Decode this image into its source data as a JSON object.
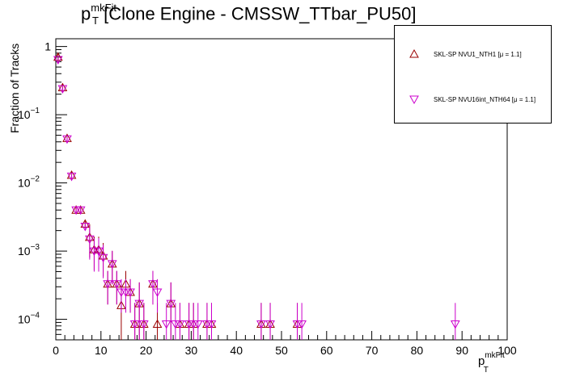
{
  "chart_data": {
    "type": "scatter",
    "title_main": "p",
    "title_sup": "mkFit",
    "title_sub": "T",
    "title_rest": " [Clone Engine - CMSSW_TTbar_PU50]",
    "ylabel": "Fraction of Tracks",
    "xlabel_main": "p",
    "xlabel_sup": "mkFit",
    "xlabel_sub": "T",
    "xlim": [
      0,
      100
    ],
    "ylim": [
      5e-05,
      1.3
    ],
    "yscale": "log",
    "xticks": [
      "0",
      "10",
      "20",
      "30",
      "40",
      "50",
      "60",
      "70",
      "80",
      "90",
      "100"
    ],
    "yticks": [
      {
        "value": 1,
        "base": "1",
        "exp": ""
      },
      {
        "value": 0.1,
        "base": "10",
        "exp": "−1"
      },
      {
        "value": 0.01,
        "base": "10",
        "exp": "−2"
      },
      {
        "value": 0.001,
        "base": "10",
        "exp": "−3"
      },
      {
        "value": 0.0001,
        "base": "10",
        "exp": "−4"
      }
    ],
    "legend_position": "top-right",
    "series": [
      {
        "name": "SKL-SP NVU1_NTH1 [μ = 1.1]",
        "marker": "triangle-up",
        "color": "#990000",
        "x": [
          0.5,
          1.5,
          2.5,
          3.5,
          4.5,
          5.5,
          6.5,
          7.5,
          8.5,
          9.5,
          10.5,
          11.5,
          12.5,
          13.5,
          14.5,
          15.5,
          16.5,
          17.5,
          18.5,
          19.5,
          21.5,
          22.5,
          25.5,
          27.5,
          29.5,
          30.5,
          33.5,
          34.5,
          45.5,
          47.5,
          53.5
        ],
        "y": [
          0.7,
          0.25,
          0.045,
          0.013,
          0.004,
          0.004,
          0.0025,
          0.0016,
          0.00105,
          0.00105,
          0.00085,
          0.00033,
          0.00065,
          0.00033,
          0.00016,
          0.00033,
          0.00025,
          8.5e-05,
          0.00017,
          8.5e-05,
          0.00033,
          8.5e-05,
          0.00017,
          8.5e-05,
          8.5e-05,
          8.5e-05,
          8.5e-05,
          8.5e-05,
          8.5e-05,
          8.5e-05,
          8.5e-05
        ]
      },
      {
        "name": "SKL-SP NVU16int_NTH64 [μ = 1.1]",
        "marker": "triangle-down",
        "color": "#cc00cc",
        "x": [
          0.5,
          1.5,
          2.5,
          3.5,
          4.5,
          5.5,
          6.5,
          7.5,
          8.5,
          9.5,
          10.5,
          11.5,
          12.5,
          13.5,
          14.5,
          15.5,
          16.5,
          17.5,
          18.5,
          19.5,
          21.5,
          22.5,
          24.5,
          25.5,
          26.5,
          27.5,
          29.5,
          30.5,
          31.5,
          33.5,
          34.5,
          45.5,
          47.5,
          53.5,
          54.5,
          88.5
        ],
        "y": [
          0.64,
          0.24,
          0.044,
          0.0125,
          0.004,
          0.004,
          0.0023,
          0.0015,
          0.001,
          0.001,
          0.0008,
          0.00033,
          0.00065,
          0.00033,
          0.00025,
          0.00025,
          0.00025,
          8.5e-05,
          0.00017,
          8.5e-05,
          0.00033,
          0.00025,
          8.5e-05,
          0.00017,
          8.5e-05,
          8.5e-05,
          8.5e-05,
          8.5e-05,
          8.5e-05,
          8.5e-05,
          8.5e-05,
          8.5e-05,
          8.5e-05,
          8.5e-05,
          8.5e-05,
          8.5e-05
        ]
      }
    ]
  }
}
